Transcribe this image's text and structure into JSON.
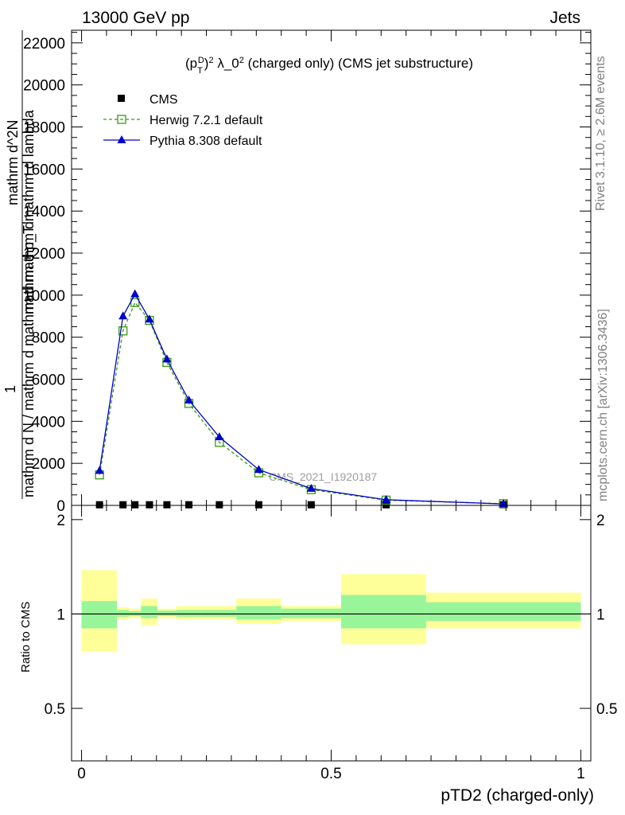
{
  "header": {
    "left": "13000 GeV pp",
    "right": "Jets"
  },
  "side_labels": {
    "rivet": "Rivet 3.1.10, ≥ 2.6M events",
    "mcplots": "mcplots.cern.ch [arXiv:1306.3436]"
  },
  "chart_data": [
    {
      "type": "line",
      "title": "(p_T^D)^2 λ_0^2 (charged only) (CMS jet substructure)",
      "ylabel_top": "mathrm d^2N",
      "ylabel_mid": "mathrm d p_T mathrm d lambda",
      "ylabel_one": "1",
      "ylabel_bottom": "mathrm d N / mathrm d mathrm d mathrm d",
      "watermark": "CMS_2021_I1920187",
      "xlim": [
        -0.02,
        1.02
      ],
      "ylim": [
        0,
        22600
      ],
      "yticks": [
        0,
        2000,
        4000,
        6000,
        8000,
        10000,
        12000,
        14000,
        16000,
        18000,
        20000,
        22000
      ],
      "ytick_labels": [
        "0",
        "2000",
        "4000",
        "6000",
        "8000",
        "10000",
        "12000",
        "14000",
        "16000",
        "18000",
        "20000",
        "22000"
      ],
      "legend_position": "top-left",
      "series": [
        {
          "name": "CMS",
          "color": "#000000",
          "marker": "square",
          "x": [
            0.036,
            0.083,
            0.107,
            0.136,
            0.171,
            0.215,
            0.276,
            0.355,
            0.46,
            0.61,
            0.845
          ],
          "values": [
            30,
            30,
            30,
            30,
            30,
            30,
            30,
            30,
            30,
            30,
            30
          ]
        },
        {
          "name": "Herwig 7.2.1 default",
          "color": "#3a9a10",
          "marker": "open-square",
          "line": "dashed",
          "x": [
            0.036,
            0.083,
            0.107,
            0.136,
            0.171,
            0.215,
            0.276,
            0.355,
            0.46,
            0.61,
            0.845
          ],
          "values": [
            1450,
            8300,
            9650,
            8800,
            6800,
            4850,
            3000,
            1550,
            750,
            250,
            80
          ]
        },
        {
          "name": "Pythia 8.308 default",
          "color": "#0000cc",
          "marker": "triangle",
          "line": "solid",
          "x": [
            0.036,
            0.083,
            0.107,
            0.136,
            0.171,
            0.215,
            0.276,
            0.355,
            0.46,
            0.61,
            0.845
          ],
          "values": [
            1650,
            9000,
            10050,
            8850,
            6950,
            5000,
            3250,
            1700,
            800,
            270,
            70
          ]
        }
      ]
    },
    {
      "type": "area",
      "ylabel": "Ratio to CMS",
      "xlabel": "pTD2 (charged-only)",
      "xlim": [
        -0.02,
        1.02
      ],
      "ylim": [
        0.34,
        2.22
      ],
      "xticks": [
        0,
        0.5,
        1
      ],
      "xtick_labels": [
        "0",
        "0.5",
        "1"
      ],
      "yticks": [
        0.5,
        1,
        2
      ],
      "ytick_labels": [
        "0.5",
        "1",
        "2"
      ],
      "reference_line": 1,
      "bins": [
        {
          "x0": 0.0,
          "x1": 0.071,
          "inner": [
            0.9,
            1.1
          ],
          "outer": [
            0.76,
            1.38
          ]
        },
        {
          "x0": 0.071,
          "x1": 0.095,
          "inner": [
            0.98,
            1.03
          ],
          "outer": [
            0.96,
            1.05
          ]
        },
        {
          "x0": 0.095,
          "x1": 0.119,
          "inner": [
            0.985,
            1.02
          ],
          "outer": [
            0.97,
            1.04
          ]
        },
        {
          "x0": 0.119,
          "x1": 0.152,
          "inner": [
            0.97,
            1.06
          ],
          "outer": [
            0.92,
            1.12
          ]
        },
        {
          "x0": 0.152,
          "x1": 0.19,
          "inner": [
            0.985,
            1.025
          ],
          "outer": [
            0.97,
            1.04
          ]
        },
        {
          "x0": 0.19,
          "x1": 0.24,
          "inner": [
            0.98,
            1.03
          ],
          "outer": [
            0.96,
            1.06
          ]
        },
        {
          "x0": 0.24,
          "x1": 0.31,
          "inner": [
            0.98,
            1.03
          ],
          "outer": [
            0.96,
            1.06
          ]
        },
        {
          "x0": 0.31,
          "x1": 0.4,
          "inner": [
            0.96,
            1.06
          ],
          "outer": [
            0.93,
            1.12
          ]
        },
        {
          "x0": 0.4,
          "x1": 0.52,
          "inner": [
            0.97,
            1.04
          ],
          "outer": [
            0.95,
            1.06
          ]
        },
        {
          "x0": 0.52,
          "x1": 0.69,
          "inner": [
            0.9,
            1.15
          ],
          "outer": [
            0.8,
            1.34
          ]
        },
        {
          "x0": 0.69,
          "x1": 1.0,
          "inner": [
            0.95,
            1.09
          ],
          "outer": [
            0.9,
            1.17
          ]
        }
      ]
    }
  ]
}
